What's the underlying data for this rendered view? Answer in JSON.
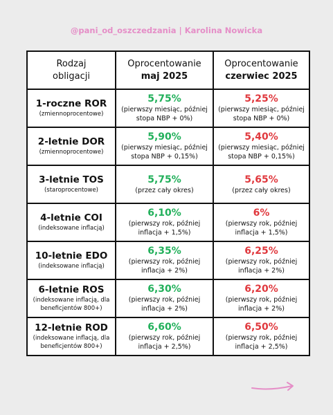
{
  "header": {
    "handle": "@pani_od_oszczedzania | Karolina Nowicka"
  },
  "table": {
    "headers": [
      {
        "line1": "Rodzaj",
        "line2": "obligacji"
      },
      {
        "line1": "Oprocentowanie",
        "line2": "maj 2025"
      },
      {
        "line1": "Oprocentowanie",
        "line2": "czerwiec 2025"
      }
    ],
    "rows": [
      {
        "name": "1-roczne ROR",
        "note": "(zmiennoprocentowe)",
        "may_rate": "5,75%",
        "may_note": "(pierwszy miesiąc, później stopa NBP + 0%)",
        "june_rate": "5,25%",
        "june_note": "(pierwszy miesiąc, później stopa NBP + 0%)"
      },
      {
        "name": "2-letnie DOR",
        "note": "(zmiennoprocentowe)",
        "may_rate": "5,90%",
        "may_note": "(pierwszy miesiąc, później stopa NBP + 0,15%)",
        "june_rate": "5,40%",
        "june_note": "(pierwszy miesiąc, później stopa NBP + 0,15%)"
      },
      {
        "name": "3-letnie TOS",
        "note": "(staroprocentowe)",
        "may_rate": "5,75%",
        "may_note": "(przez cały okres)",
        "june_rate": "5,65%",
        "june_note": "(przez cały okres)"
      },
      {
        "name": "4-letnie COI",
        "note": "(indeksowane inflacją)",
        "may_rate": "6,10%",
        "may_note": "(pierwszy rok, później inflacja + 1,5%)",
        "june_rate": "6%",
        "june_note": "(pierwszy rok, później inflacja + 1,5%)"
      },
      {
        "name": "10-letnie EDO",
        "note": "(indeksowane inflacją)",
        "may_rate": "6,35%",
        "may_note": "(pierwszy rok, później inflacja + 2%)",
        "june_rate": "6,25%",
        "june_note": "(pierwszy rok, później inflacja + 2%)"
      },
      {
        "name": "6-letnie ROS",
        "note": "(indeksowane inflacją, dla beneficjentów 800+)",
        "may_rate": "6,30%",
        "may_note": "(pierwszy rok, później inflacja + 2%)",
        "june_rate": "6,20%",
        "june_note": "(pierwszy rok, później inflacja + 2%)"
      },
      {
        "name": "12-letnie ROD",
        "note": "(indeksowane inflacją, dla beneficjentów 800+)",
        "may_rate": "6,60%",
        "may_note": "(pierwszy rok, później inflacja + 2,5%)",
        "june_rate": "6,50%",
        "june_note": "(pierwszy rok, później inflacja + 2,5%)"
      }
    ]
  }
}
